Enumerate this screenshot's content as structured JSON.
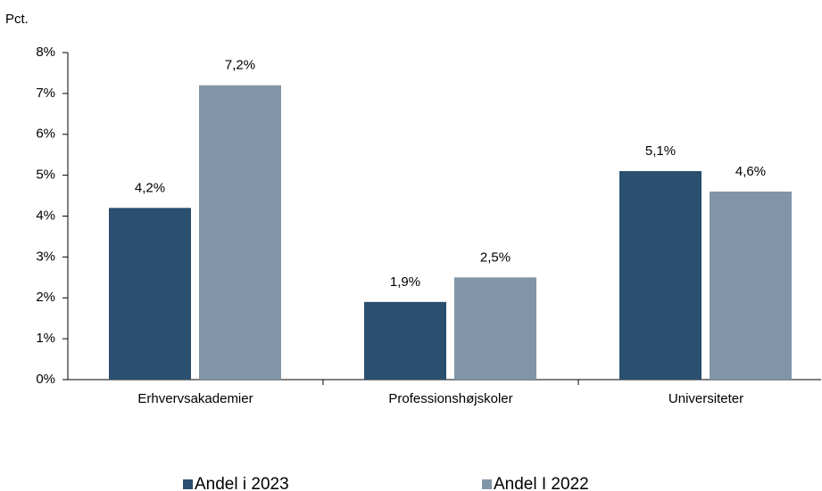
{
  "chart_data": {
    "type": "bar",
    "y_label": "Pct.",
    "categories": [
      "Erhvervsakademier",
      "Professionshøjskoler",
      "Universiteter"
    ],
    "series": [
      {
        "name": "Andel i 2023",
        "color": "#2b4f6e",
        "values": [
          4.2,
          1.9,
          5.1
        ],
        "value_labels": [
          "4,2%",
          "1,9%",
          "5,1%"
        ]
      },
      {
        "name": "Andel I 2022",
        "color": "#8096a8",
        "values": [
          7.2,
          2.5,
          4.6
        ],
        "value_labels": [
          "7,2%",
          "2,5%",
          "4,6%"
        ]
      }
    ],
    "ylim": [
      0,
      8
    ],
    "yticks": [
      {
        "value": 0,
        "label": "0%"
      },
      {
        "value": 1,
        "label": "1%"
      },
      {
        "value": 2,
        "label": "2%"
      },
      {
        "value": 3,
        "label": "3%"
      },
      {
        "value": 4,
        "label": "4%"
      },
      {
        "value": 5,
        "label": "5%"
      },
      {
        "value": 6,
        "label": "6%"
      },
      {
        "value": 7,
        "label": "7%"
      },
      {
        "value": 8,
        "label": "8%"
      }
    ],
    "grid": false,
    "legend": "bottom"
  }
}
